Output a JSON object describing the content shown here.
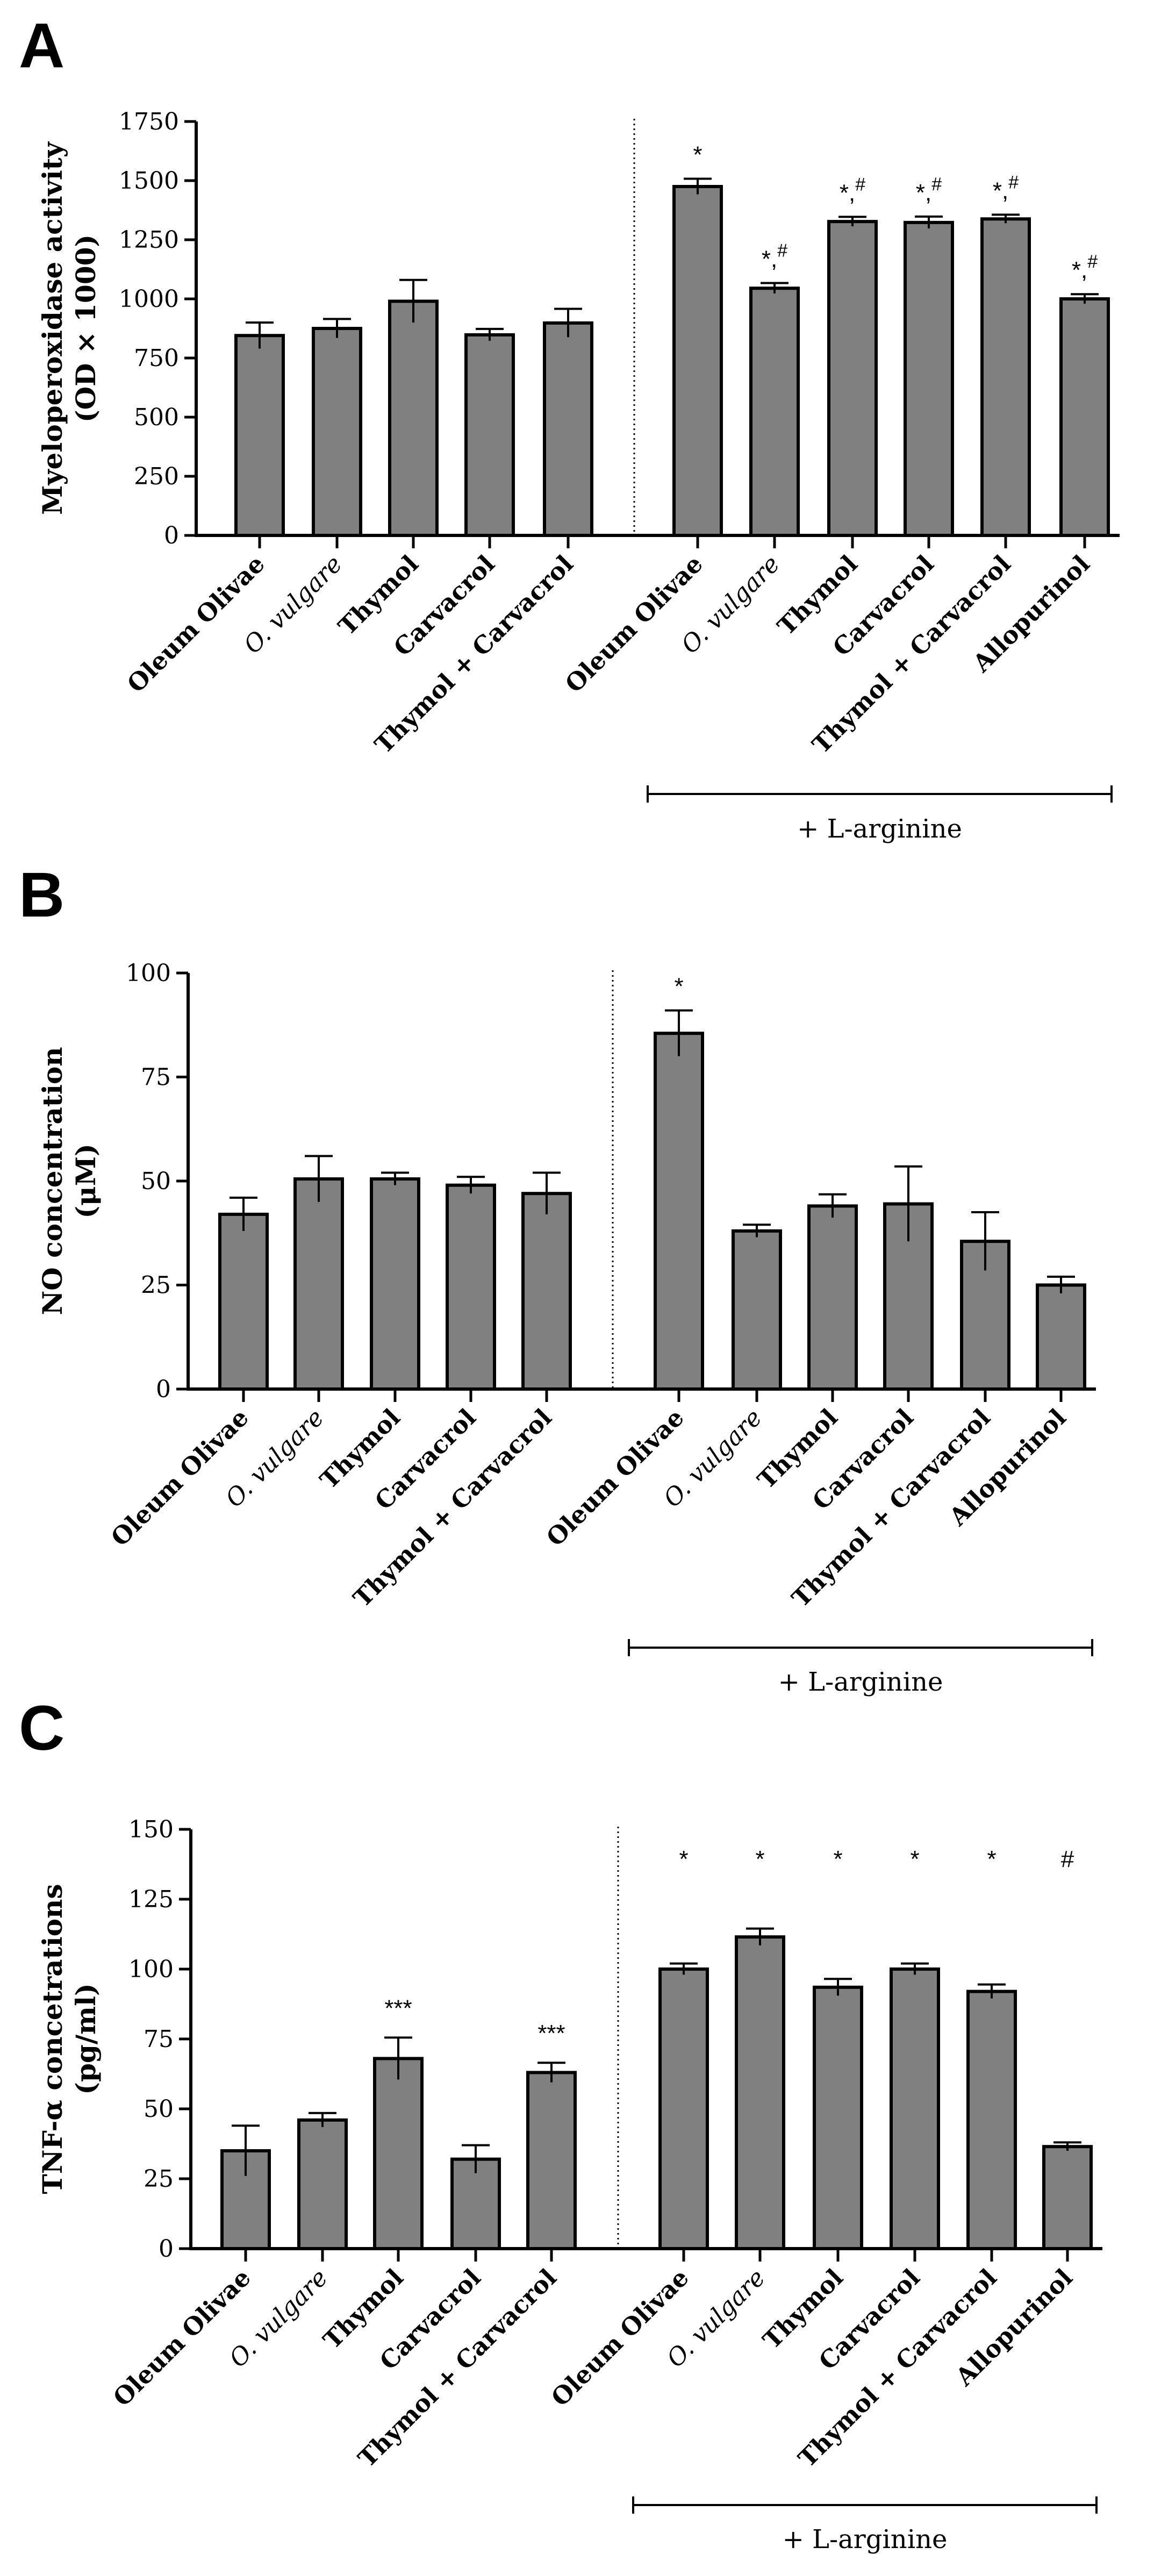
{
  "chart_data": [
    {
      "panel": "A",
      "type": "bar",
      "ylabel_line1": "Myeloperoxidase activity",
      "ylabel_line2": "(OD × 1000)",
      "ylim": [
        0,
        1750
      ],
      "yticks": [
        0,
        250,
        500,
        750,
        1000,
        1250,
        1500,
        1750
      ],
      "categories": [
        "Oleum Olivae",
        "O. vulgare",
        "Thymol",
        "Carvacrol",
        "Thymol + Carvacrol",
        "Oleum Olivae",
        "O. vulgare",
        "Thymol",
        "Carvacrol",
        "Thymol + Carvacrol",
        "Allopurinol"
      ],
      "italic": [
        false,
        true,
        false,
        false,
        false,
        false,
        true,
        false,
        false,
        false,
        false
      ],
      "values": [
        845,
        875,
        990,
        848,
        898,
        1475,
        1045,
        1327,
        1323,
        1338,
        1000
      ],
      "errors": [
        55,
        40,
        90,
        25,
        60,
        33,
        22,
        20,
        25,
        18,
        20
      ],
      "annotations": [
        "",
        "",
        "",
        "",
        "",
        "*",
        "*,#",
        "*,#",
        "*,#",
        "*,#",
        "*,#"
      ],
      "group_label": "+ L-arginine"
    },
    {
      "panel": "B",
      "type": "bar",
      "ylabel_line1": "NO concentration",
      "ylabel_line2": "(μM)",
      "ylim": [
        0,
        100
      ],
      "yticks": [
        0,
        25,
        50,
        75,
        100
      ],
      "categories": [
        "Oleum Olivae",
        "O. vulgare",
        "Thymol",
        "Carvacrol",
        "Thymol + Carvacrol",
        "Oleum Olivae",
        "O. vulgare",
        "Thymol",
        "Carvacrol",
        "Thymol + Carvacrol",
        "Allopurinol"
      ],
      "italic": [
        false,
        true,
        false,
        false,
        false,
        false,
        true,
        false,
        false,
        false,
        false
      ],
      "values": [
        42,
        50.5,
        50.5,
        49,
        47,
        85.5,
        38,
        44,
        44.5,
        35.5,
        25
      ],
      "errors": [
        4,
        5.5,
        1.5,
        2,
        5,
        5.5,
        1.5,
        2.8,
        9,
        7,
        2
      ],
      "annotations": [
        "",
        "",
        "",
        "",
        "",
        "*",
        "",
        "",
        "",
        "",
        ""
      ],
      "group_label": "+ L-arginine"
    },
    {
      "panel": "C",
      "type": "bar",
      "ylabel_line1": "TNF-α concetrations",
      "ylabel_line2": "(pg/ml)",
      "ylim": [
        0,
        150
      ],
      "yticks": [
        0,
        25,
        50,
        75,
        100,
        125,
        150
      ],
      "categories": [
        "Oleum Olivae",
        "O. vulgare",
        "Thymol",
        "Carvacrol",
        "Thymol + Carvacrol",
        "Oleum Olivae",
        "O. vulgare",
        "Thymol",
        "Carvacrol",
        "Thymol + Carvacrol",
        "Allopurinol"
      ],
      "italic": [
        false,
        true,
        false,
        false,
        false,
        false,
        true,
        false,
        false,
        false,
        false
      ],
      "values": [
        35,
        46,
        68,
        32,
        63,
        100,
        111.5,
        93.5,
        100,
        92,
        36.5
      ],
      "errors": [
        9,
        2.5,
        7.5,
        5,
        3.5,
        2,
        3,
        3,
        2,
        2.5,
        1.5
      ],
      "annotations": [
        "",
        "",
        "***",
        "",
        "***",
        "*",
        "*",
        "*",
        "*",
        "*",
        "#"
      ],
      "group_label": "+ L-arginine"
    }
  ]
}
